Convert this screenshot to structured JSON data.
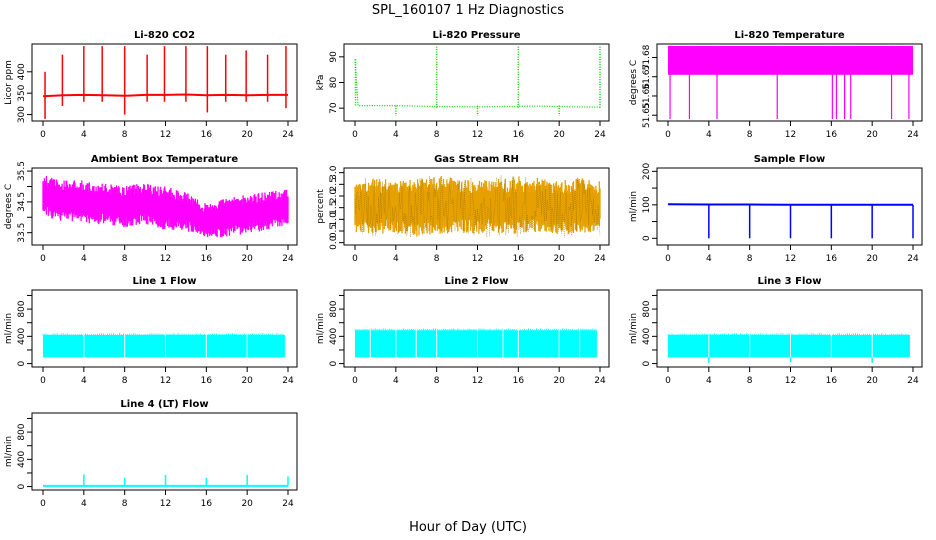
{
  "figure": {
    "title": "SPL_160107  1 Hz Diagnostics",
    "xlabel": "Hour of Day (UTC)"
  },
  "chart_data": [
    {
      "type": "line",
      "title": "Li-820 CO2",
      "ylabel": "Licor ppm",
      "xlim": [
        0,
        24
      ],
      "xticks": [
        0,
        4,
        8,
        12,
        16,
        20,
        24
      ],
      "ylim": [
        285,
        465
      ],
      "yticks": [
        300,
        350,
        400
      ],
      "color": "#ff0000",
      "style": "line",
      "series": [
        {
          "x": [
            0,
            2,
            4,
            6,
            8,
            10,
            12,
            14,
            16,
            18,
            20,
            22,
            24
          ],
          "values": [
            343,
            345,
            346,
            345,
            344,
            346,
            346,
            347,
            345,
            346,
            345,
            346,
            346
          ]
        }
      ],
      "spikes": [
        {
          "x": 0.2,
          "high": 400,
          "low": 290
        },
        {
          "x": 1.9,
          "high": 440,
          "low": 320
        },
        {
          "x": 4.0,
          "high": 460,
          "low": 330
        },
        {
          "x": 5.8,
          "high": 460,
          "low": 330
        },
        {
          "x": 8.0,
          "high": 460,
          "low": 300
        },
        {
          "x": 10.2,
          "high": 440,
          "low": 330
        },
        {
          "x": 11.9,
          "high": 460,
          "low": 330
        },
        {
          "x": 14.0,
          "high": 460,
          "low": 330
        },
        {
          "x": 16.1,
          "high": 460,
          "low": 305
        },
        {
          "x": 17.9,
          "high": 440,
          "low": 330
        },
        {
          "x": 19.9,
          "high": 450,
          "low": 330
        },
        {
          "x": 22.0,
          "high": 440,
          "low": 330
        },
        {
          "x": 23.8,
          "high": 460,
          "low": 315
        }
      ]
    },
    {
      "type": "line",
      "title": "Li-820 Pressure",
      "ylabel": "kPa",
      "xlim": [
        0,
        24
      ],
      "xticks": [
        0,
        4,
        8,
        12,
        16,
        20,
        24
      ],
      "ylim": [
        65,
        95
      ],
      "yticks": [
        70,
        80,
        90
      ],
      "color": "#00cc00",
      "style": "dotted",
      "series": [
        {
          "x": [
            0,
            0.3,
            2,
            4,
            6,
            8,
            10,
            12,
            14,
            16,
            18,
            20,
            22,
            24
          ],
          "values": [
            89,
            71,
            71,
            71,
            70.8,
            70.6,
            70.6,
            70.5,
            70.6,
            70.7,
            70.8,
            70.6,
            70.5,
            70.4
          ]
        }
      ],
      "spikes": [
        {
          "x": 0.05,
          "high": 89,
          "low": 71
        },
        {
          "x": 4.0,
          "high": 71,
          "low": 67
        },
        {
          "x": 8.0,
          "high": 94,
          "low": 70
        },
        {
          "x": 12.0,
          "high": 71,
          "low": 67
        },
        {
          "x": 16.0,
          "high": 94,
          "low": 70
        },
        {
          "x": 20.0,
          "high": 71,
          "low": 67
        },
        {
          "x": 24.0,
          "high": 94,
          "low": 70
        }
      ]
    },
    {
      "type": "area",
      "title": "Li-820 Temperature",
      "ylabel": "degrees C",
      "xlim": [
        0,
        24
      ],
      "xticks": [
        0,
        4,
        8,
        12,
        16,
        20,
        24
      ],
      "ylim": [
        51.647,
        51.687
      ],
      "yticks": [
        51.65,
        51.66,
        51.67,
        51.68
      ],
      "yticklabels": [
        "51.65",
        "51.66",
        "51.67",
        "51.68"
      ],
      "color": "#ff00ff",
      "band": [
        51.671,
        51.686
      ],
      "spikes": [
        {
          "x": 0.2,
          "high": 51.686,
          "low": 51.648
        },
        {
          "x": 2.1,
          "high": 51.686,
          "low": 51.648
        },
        {
          "x": 4.8,
          "high": 51.686,
          "low": 51.648
        },
        {
          "x": 10.7,
          "high": 51.686,
          "low": 51.648
        },
        {
          "x": 16.1,
          "high": 51.686,
          "low": 51.648
        },
        {
          "x": 16.5,
          "high": 51.686,
          "low": 51.648
        },
        {
          "x": 17.3,
          "high": 51.686,
          "low": 51.648
        },
        {
          "x": 17.9,
          "high": 51.686,
          "low": 51.648
        },
        {
          "x": 21.9,
          "high": 51.686,
          "low": 51.648
        },
        {
          "x": 23.6,
          "high": 51.686,
          "low": 51.648
        }
      ]
    },
    {
      "type": "area",
      "title": "Ambient Box Temperature",
      "ylabel": "degrees C",
      "xlim": [
        0,
        24
      ],
      "xticks": [
        0,
        4,
        8,
        12,
        16,
        20,
        24
      ],
      "ylim": [
        33.1,
        35.6
      ],
      "yticks": [
        33.5,
        34.0,
        34.5,
        35.0,
        35.5
      ],
      "yticklabels": [
        "33.5",
        "",
        "34.5",
        "",
        "35.5"
      ],
      "color": "#ff00ff",
      "x": [
        0,
        2,
        4,
        6,
        8,
        10,
        12,
        14,
        16,
        18,
        20,
        22,
        24
      ],
      "upper": [
        35.5,
        35.3,
        35.3,
        35.2,
        35.1,
        35.2,
        35.1,
        34.9,
        34.5,
        34.7,
        34.8,
        34.9,
        35.0
      ],
      "lower": [
        33.9,
        33.8,
        33.7,
        33.7,
        33.6,
        33.7,
        33.5,
        33.5,
        33.2,
        33.3,
        33.4,
        33.5,
        33.7
      ]
    },
    {
      "type": "area",
      "title": "Gas Stream RH",
      "ylabel": "percent",
      "xlim": [
        0,
        24
      ],
      "xticks": [
        0,
        4,
        8,
        12,
        16,
        20,
        24
      ],
      "ylim": [
        -0.1,
        3.2
      ],
      "yticks": [
        0.0,
        0.5,
        1.0,
        1.5,
        2.0,
        2.5,
        3.0
      ],
      "yticklabels": [
        "0.0",
        "0.5",
        "1.0",
        "1.5",
        "2.0",
        "2.5",
        "3.0"
      ],
      "color": "#e6a000",
      "x": [
        0,
        2,
        4,
        6,
        8,
        10,
        12,
        14,
        16,
        18,
        20,
        22,
        24
      ],
      "upper": [
        2.7,
        2.9,
        2.8,
        2.9,
        3.0,
        2.9,
        2.8,
        2.9,
        3.0,
        2.9,
        2.8,
        2.9,
        2.8
      ],
      "lower": [
        0.3,
        0.2,
        0.3,
        0.1,
        0.2,
        0.3,
        0.2,
        0.3,
        0.2,
        0.3,
        0.2,
        0.3,
        0.3
      ]
    },
    {
      "type": "line",
      "title": "Sample Flow",
      "ylabel": "ml/min",
      "xlim": [
        0,
        24
      ],
      "xticks": [
        0,
        4,
        8,
        12,
        16,
        20,
        24
      ],
      "ylim": [
        -20,
        210
      ],
      "yticks": [
        0,
        50,
        100,
        150,
        200
      ],
      "yticklabels": [
        "0",
        "",
        "100",
        "",
        "200"
      ],
      "color": "#0000ff",
      "style": "line",
      "series": [
        {
          "x": [
            0,
            4,
            8,
            12,
            16,
            20,
            24
          ],
          "values": [
            102,
            101,
            101,
            100,
            100,
            100,
            100
          ]
        }
      ],
      "spikes": [
        {
          "x": 4.0,
          "high": 102,
          "low": 0
        },
        {
          "x": 8.0,
          "high": 101,
          "low": 0
        },
        {
          "x": 12.0,
          "high": 101,
          "low": 0
        },
        {
          "x": 16.0,
          "high": 100,
          "low": 0
        },
        {
          "x": 20.0,
          "high": 100,
          "low": 0
        },
        {
          "x": 24.0,
          "high": 100,
          "low": 0
        }
      ]
    },
    {
      "type": "area",
      "title": "Line 1 Flow",
      "ylabel": "ml/min",
      "xlim": [
        0,
        24
      ],
      "xticks": [
        0,
        4,
        8,
        12,
        16,
        20,
        24
      ],
      "ylim": [
        -50,
        1080
      ],
      "yticks": [
        0,
        200,
        400,
        600,
        800,
        1000
      ],
      "yticklabels": [
        "0",
        "",
        "400",
        "",
        "800",
        ""
      ],
      "color": "#00ffff",
      "band": [
        90,
        420
      ],
      "gaps": [
        4.0,
        8.0,
        12.0,
        16.0,
        20.0,
        24.0
      ]
    },
    {
      "type": "area",
      "title": "Line 2 Flow",
      "ylabel": "ml/min",
      "xlim": [
        0,
        24
      ],
      "xticks": [
        0,
        4,
        8,
        12,
        16,
        20,
        24
      ],
      "ylim": [
        -50,
        1080
      ],
      "yticks": [
        0,
        200,
        400,
        600,
        800,
        1000
      ],
      "yticklabels": [
        "0",
        "",
        "400",
        "",
        "800",
        ""
      ],
      "color": "#00ffff",
      "band": [
        90,
        490
      ],
      "gaps": [
        1.5,
        4.0,
        6.0,
        8.0,
        12.0,
        14.5,
        16.0,
        20.0,
        22.0,
        24.0
      ]
    },
    {
      "type": "area",
      "title": "Line 3 Flow",
      "ylabel": "ml/min",
      "xlim": [
        0,
        24
      ],
      "xticks": [
        0,
        4,
        8,
        12,
        16,
        20,
        24
      ],
      "ylim": [
        -50,
        1080
      ],
      "yticks": [
        0,
        200,
        400,
        600,
        800,
        1000
      ],
      "yticklabels": [
        "0",
        "",
        "400",
        "",
        "800",
        ""
      ],
      "color": "#00ffff",
      "band": [
        90,
        420
      ],
      "gaps": [
        4.0,
        8.0,
        12.0,
        16.0,
        20.0,
        24.0
      ],
      "dips": [
        {
          "x": 4.0,
          "low": 10
        },
        {
          "x": 12.0,
          "low": 20
        },
        {
          "x": 20.0,
          "low": 10
        }
      ]
    },
    {
      "type": "line",
      "title": "Line 4 (LT) Flow",
      "ylabel": "ml/min",
      "xlim": [
        0,
        24
      ],
      "xticks": [
        0,
        4,
        8,
        12,
        16,
        20,
        24
      ],
      "ylim": [
        -50,
        1080
      ],
      "yticks": [
        0,
        200,
        400,
        600,
        800,
        1000
      ],
      "yticklabels": [
        "0",
        "",
        "400",
        "",
        "800",
        ""
      ],
      "color": "#00ffff",
      "style": "line",
      "series": [
        {
          "x": [
            0,
            24
          ],
          "values": [
            10,
            10
          ]
        }
      ],
      "spikes": [
        {
          "x": 4.0,
          "high": 180,
          "low": 10
        },
        {
          "x": 8.0,
          "high": 130,
          "low": 10
        },
        {
          "x": 12.0,
          "high": 170,
          "low": 10
        },
        {
          "x": 16.0,
          "high": 130,
          "low": 10
        },
        {
          "x": 20.0,
          "high": 170,
          "low": 10
        },
        {
          "x": 24.0,
          "high": 150,
          "low": 10
        }
      ]
    }
  ]
}
